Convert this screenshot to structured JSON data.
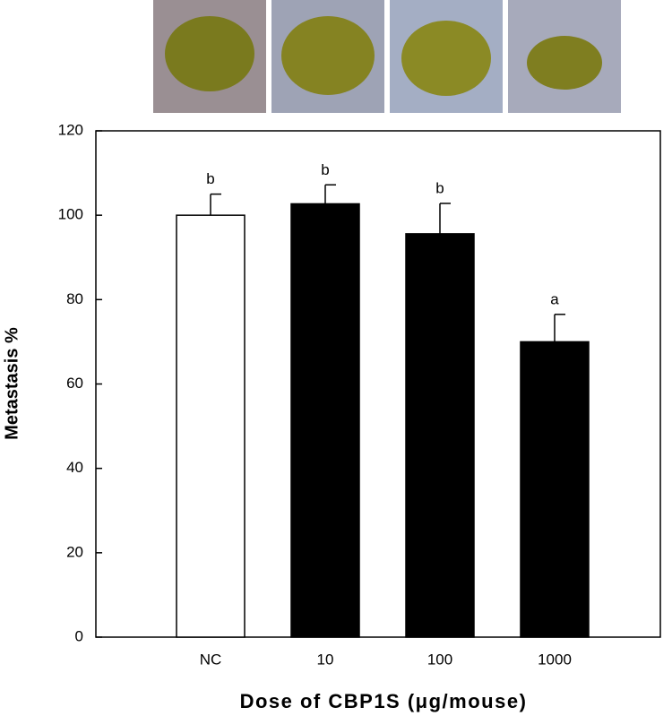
{
  "chart_data": {
    "type": "bar",
    "xlabel": "Dose of CBP1S (μg/mouse)",
    "ylabel": "Metastasis %",
    "categories": [
      "NC",
      "10",
      "100",
      "1000"
    ],
    "values": [
      100,
      102.7,
      95.6,
      70
    ],
    "errors": [
      5,
      4.5,
      7.2,
      6.5
    ],
    "colors": [
      "#ffffff",
      "#000000",
      "#000000",
      "#000000"
    ],
    "annotations": [
      "b",
      "b",
      "b",
      "a"
    ],
    "ylim": [
      0,
      120
    ],
    "yticks": [
      0,
      20,
      40,
      60,
      80,
      100,
      120
    ],
    "grid": false
  }
}
